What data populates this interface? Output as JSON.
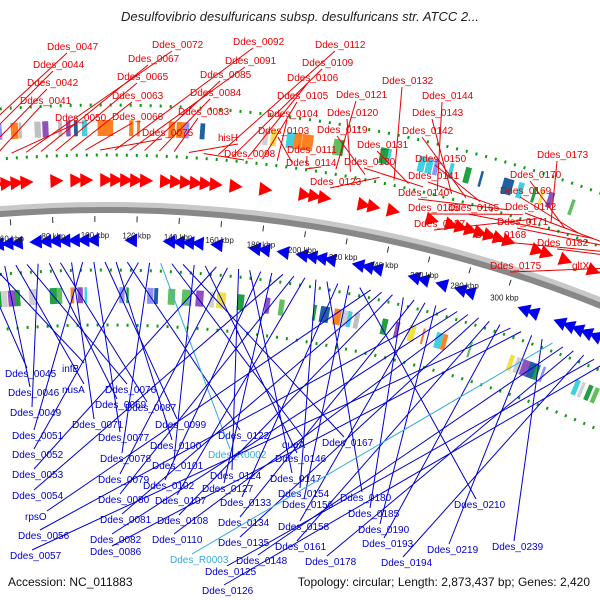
{
  "title": "Desulfovibrio desulfuricans subsp. desulfuricans str. ATCC 2...",
  "footer": {
    "accession": "Accession: NC_011883",
    "topology": "Topology: circular; Length: 2,873,437 bp; Genes: 2,420"
  },
  "colors": {
    "forward_label": "#e60000",
    "reverse_label": "#0000cc",
    "rna_label": "#33aadd",
    "forward_arrow": "#ff0000",
    "reverse_arrow": "#0000ee",
    "backbone": "#888888",
    "dot_ring": "#119911"
  },
  "ticks": [
    "60 kbp",
    "80 kbp",
    "100 kbp",
    "120 kbp",
    "140 kbp",
    "160 kbp",
    "180 kbp",
    "200 kbp",
    "220 kbp",
    "240 kbp",
    "260 kbp",
    "280 kbp",
    "300 kbp"
  ],
  "top_labels": [
    {
      "text": "Ddes_0047"
    },
    {
      "text": "Ddes_0044"
    },
    {
      "text": "Ddes_0042"
    },
    {
      "text": "Ddes_0041"
    },
    {
      "text": "Ddes_0050"
    },
    {
      "text": "Ddes_0072"
    },
    {
      "text": "Ddes_0067"
    },
    {
      "text": "Ddes_0065"
    },
    {
      "text": "Ddes_0063"
    },
    {
      "text": "Ddes_0066"
    },
    {
      "text": "Ddes_0075"
    },
    {
      "text": "Ddes_0092"
    },
    {
      "text": "Ddes_0091"
    },
    {
      "text": "Ddes_0085"
    },
    {
      "text": "Ddes_0084"
    },
    {
      "text": "Ddes_0083"
    },
    {
      "text": "hisH"
    },
    {
      "text": "Ddes_0098"
    },
    {
      "text": "Ddes_0112"
    },
    {
      "text": "Ddes_0109"
    },
    {
      "text": "Ddes_0106"
    },
    {
      "text": "Ddes_0105"
    },
    {
      "text": "Ddes_0104"
    },
    {
      "text": "Ddes_0103"
    },
    {
      "text": "Ddes_0111"
    },
    {
      "text": "Ddes_0114"
    },
    {
      "text": "Ddes_0121"
    },
    {
      "text": "Ddes_0120"
    },
    {
      "text": "Ddes_0119"
    },
    {
      "text": "Ddes_0123"
    },
    {
      "text": "Ddes_0132"
    },
    {
      "text": "Ddes_0131"
    },
    {
      "text": "Ddes_0130"
    },
    {
      "text": "Ddes_0144"
    },
    {
      "text": "Ddes_0143"
    },
    {
      "text": "Ddes_0142"
    },
    {
      "text": "Ddes_0150"
    },
    {
      "text": "Ddes_0141"
    },
    {
      "text": "Ddes_0140"
    },
    {
      "text": "Ddes_0145"
    },
    {
      "text": "Ddes_0157"
    },
    {
      "text": "Ddes_0173"
    },
    {
      "text": "Ddes_0170"
    },
    {
      "text": "Ddes_0169"
    },
    {
      "text": "Ddes_0165"
    },
    {
      "text": "Ddes_0172"
    },
    {
      "text": "Ddes_0171"
    },
    {
      "text": "Ddes_0168"
    },
    {
      "text": "Ddes_0182"
    },
    {
      "text": "Ddes_0175"
    },
    {
      "text": "gltX"
    }
  ],
  "bottom_labels": [
    {
      "text": "Ddes_0045"
    },
    {
      "text": "infB"
    },
    {
      "text": "Ddes_0046"
    },
    {
      "text": "nusA"
    },
    {
      "text": "Ddes_0076"
    },
    {
      "text": "Ddes_0049"
    },
    {
      "text": "Ddes_0069"
    },
    {
      "text": "Ddes_0087"
    },
    {
      "text": "Ddes_0071"
    },
    {
      "text": "Ddes_0051"
    },
    {
      "text": "Ddes_0077"
    },
    {
      "text": "Ddes_0099"
    },
    {
      "text": "Ddes_0100"
    },
    {
      "text": "Ddes_0122"
    },
    {
      "text": "Ddes_0052"
    },
    {
      "text": "Ddes_0078"
    },
    {
      "text": "Ddes_R0002"
    },
    {
      "text": "queA"
    },
    {
      "text": "Ddes_0167"
    },
    {
      "text": "Ddes_0101"
    },
    {
      "text": "Ddes_0146"
    },
    {
      "text": "Ddes_0053"
    },
    {
      "text": "Ddes_0079"
    },
    {
      "text": "Ddes_0124"
    },
    {
      "text": "Ddes_0147"
    },
    {
      "text": "Ddes_0102"
    },
    {
      "text": "Ddes_0127"
    },
    {
      "text": "Ddes_0054"
    },
    {
      "text": "Ddes_0080"
    },
    {
      "text": "Ddes_0107"
    },
    {
      "text": "Ddes_0154"
    },
    {
      "text": "Ddes_0180"
    },
    {
      "text": "Ddes_0133"
    },
    {
      "text": "Ddes_0156"
    },
    {
      "text": "Ddes_0210"
    },
    {
      "text": "rpsO"
    },
    {
      "text": "Ddes_0081"
    },
    {
      "text": "Ddes_0108"
    },
    {
      "text": "Ddes_0185"
    },
    {
      "text": "Ddes_0134"
    },
    {
      "text": "Ddes_0158"
    },
    {
      "text": "Ddes_0190"
    },
    {
      "text": "Ddes_0056"
    },
    {
      "text": "Ddes_0082"
    },
    {
      "text": "Ddes_0110"
    },
    {
      "text": "Ddes_0135"
    },
    {
      "text": "Ddes_0161"
    },
    {
      "text": "Ddes_0193"
    },
    {
      "text": "Ddes_0057"
    },
    {
      "text": "Ddes_0086"
    },
    {
      "text": "Ddes_0219"
    },
    {
      "text": "Ddes_0239"
    },
    {
      "text": "Ddes_R0003"
    },
    {
      "text": "Ddes_0148"
    },
    {
      "text": "Ddes_0178"
    },
    {
      "text": "Ddes_0194"
    },
    {
      "text": "Ddes_0125"
    },
    {
      "text": "Ddes_0126"
    }
  ]
}
